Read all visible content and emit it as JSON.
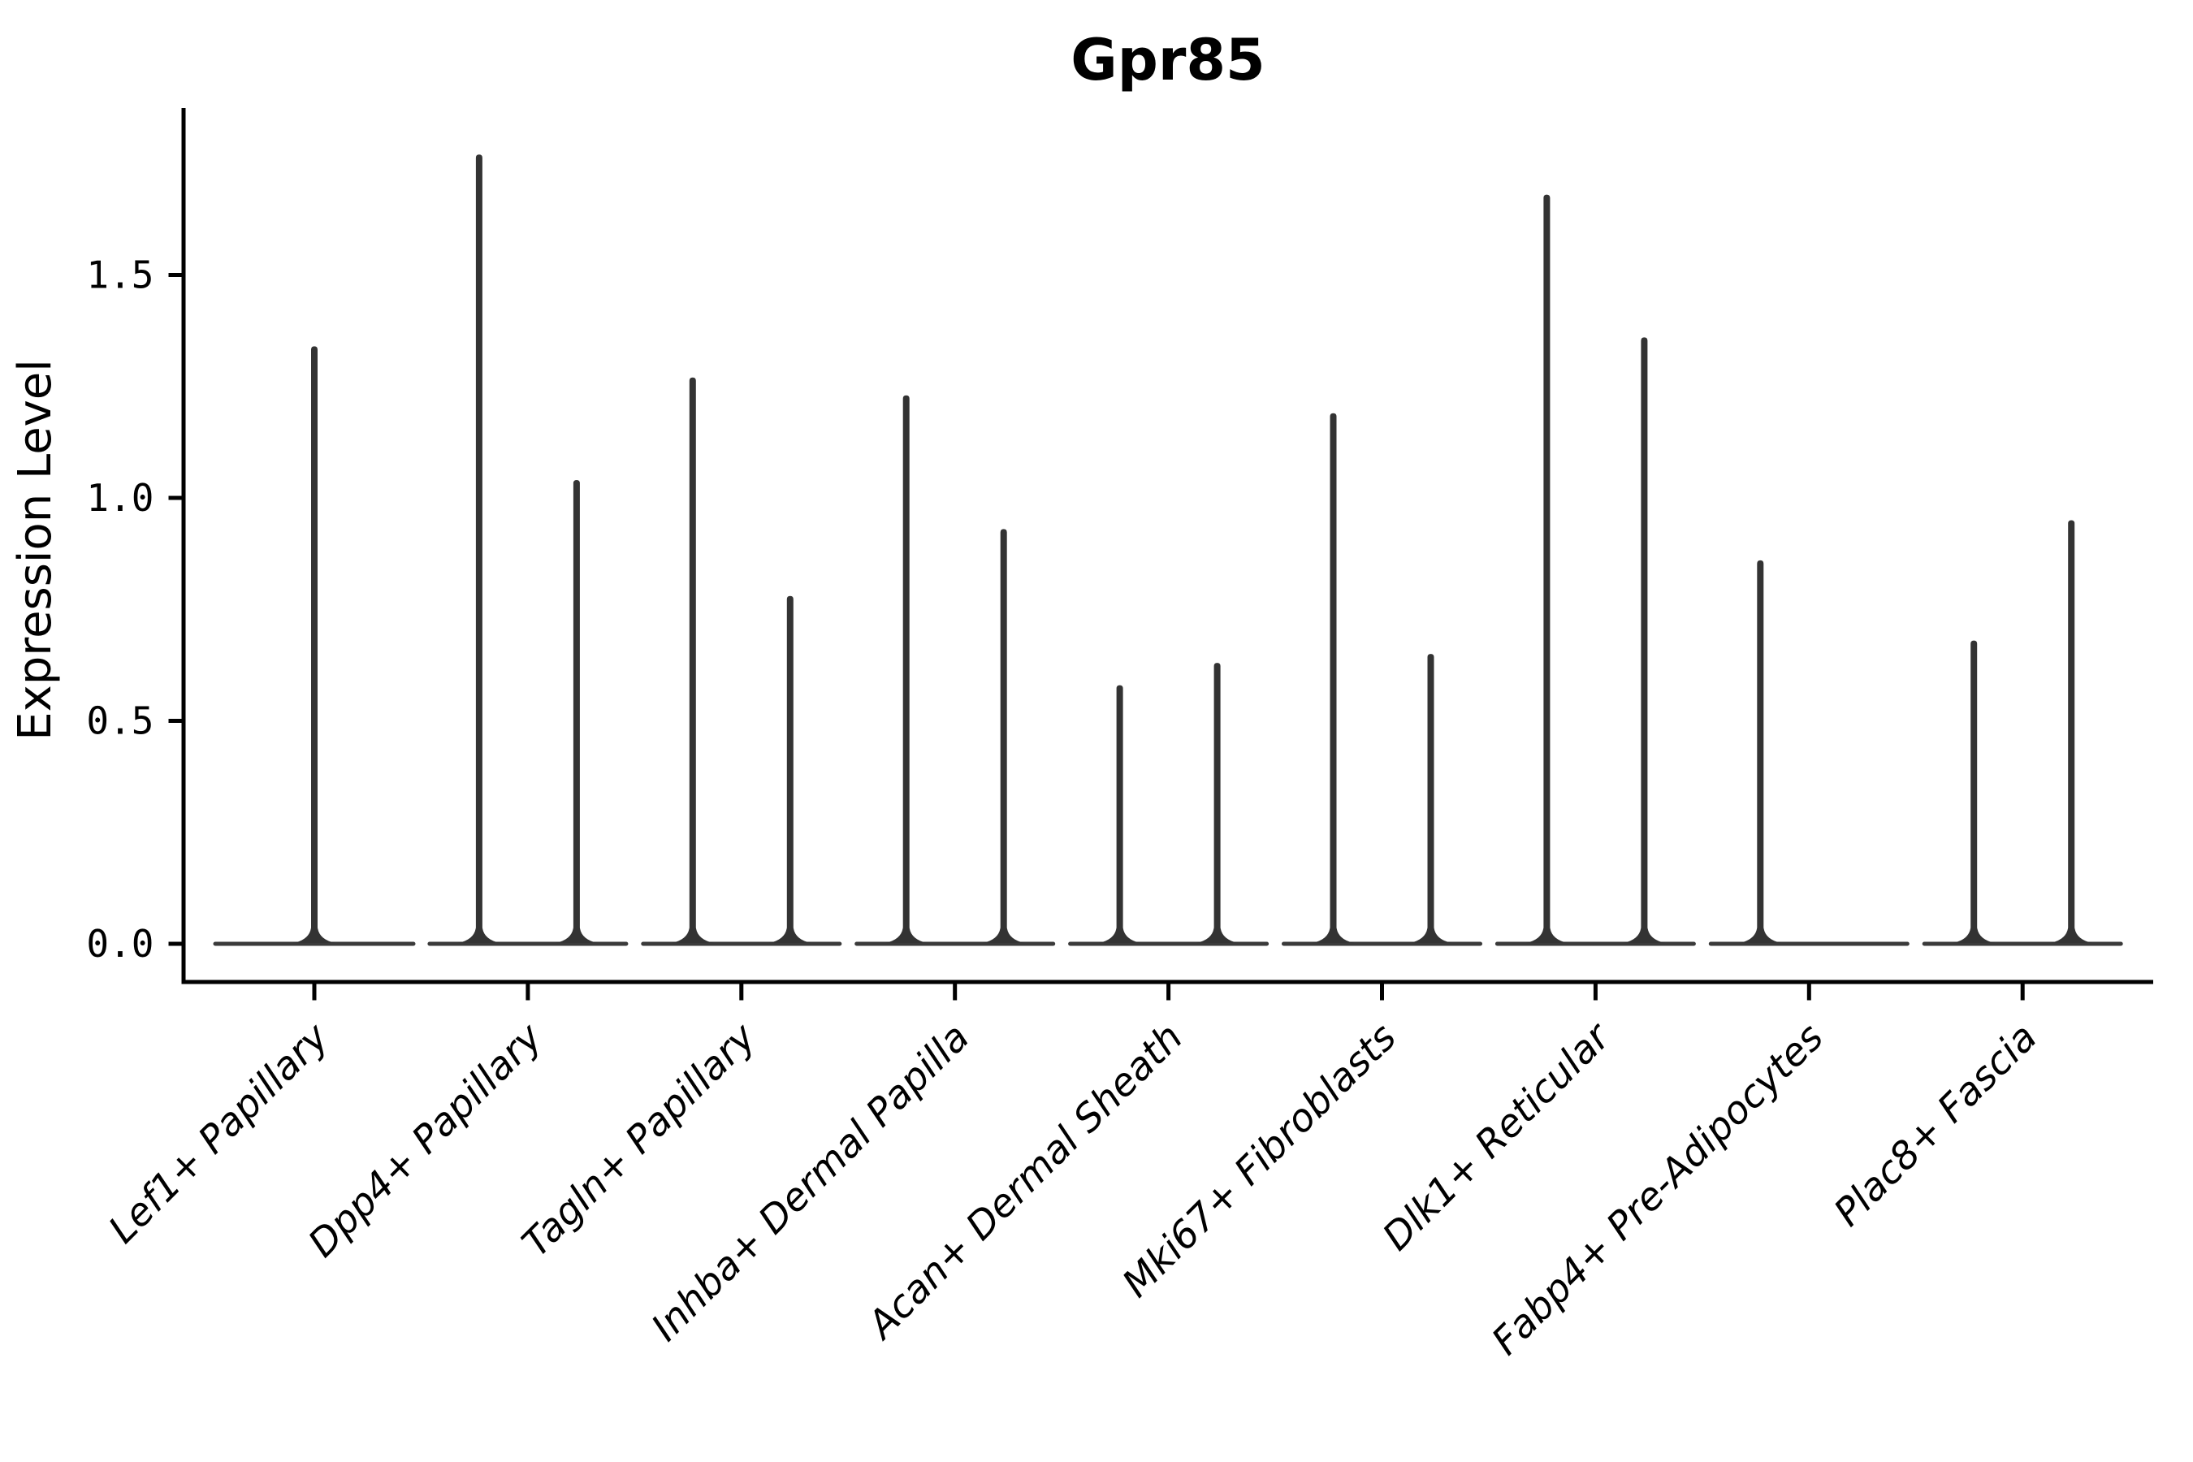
{
  "chart_data": {
    "type": "violin",
    "title": "Gpr85",
    "ylabel": "Expression Level",
    "xlabel": "",
    "grid": false,
    "legend": "none",
    "ylim": [
      -0.09,
      1.88
    ],
    "yticks": [
      0.0,
      0.5,
      1.0,
      1.5
    ],
    "violin_color": "#333333",
    "baseline_color": "#3a3a3a",
    "axis_color": "#000000",
    "note": "Each group shows extremely thin violin(s): a wide flat base at expression 0 and a narrow density spike up to the max expression value. Groups with two violins are dodged left/right; a max of 0 means a flat violin (base dash only).",
    "groups": [
      {
        "category": "Lef1+ Papillary",
        "violins": [
          {
            "position": "center",
            "max": 1.34
          }
        ]
      },
      {
        "category": "Dpp4+ Papillary",
        "violins": [
          {
            "position": "left",
            "max": 1.77
          },
          {
            "position": "right",
            "max": 1.04
          }
        ]
      },
      {
        "category": "Tagln+ Papillary",
        "violins": [
          {
            "position": "left",
            "max": 1.27
          },
          {
            "position": "right",
            "max": 0.78
          }
        ]
      },
      {
        "category": "Inhba+ Dermal Papilla",
        "violins": [
          {
            "position": "left",
            "max": 1.23
          },
          {
            "position": "right",
            "max": 0.93
          }
        ]
      },
      {
        "category": "Acan+ Dermal Sheath",
        "violins": [
          {
            "position": "left",
            "max": 0.58
          },
          {
            "position": "right",
            "max": 0.63
          }
        ]
      },
      {
        "category": "Mki67+ Fibroblasts",
        "violins": [
          {
            "position": "left",
            "max": 1.19
          },
          {
            "position": "right",
            "max": 0.65
          }
        ]
      },
      {
        "category": "Dlk1+ Reticular",
        "violins": [
          {
            "position": "left",
            "max": 1.68
          },
          {
            "position": "right",
            "max": 1.36
          }
        ]
      },
      {
        "category": "Fabp4+ Pre-Adipocytes",
        "violins": [
          {
            "position": "left",
            "max": 0.86
          },
          {
            "position": "right",
            "max": 0.0
          }
        ]
      },
      {
        "category": "Plac8+ Fascia",
        "violins": [
          {
            "position": "left",
            "max": 0.68
          },
          {
            "position": "right",
            "max": 0.95
          }
        ]
      }
    ]
  }
}
